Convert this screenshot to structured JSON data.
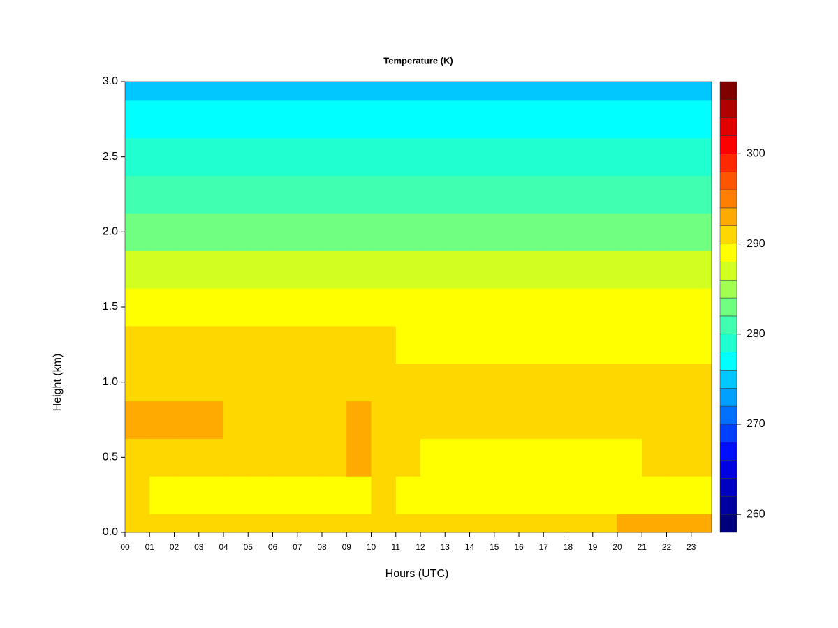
{
  "chart_data": {
    "type": "heatmap",
    "title": "Temperature (K)",
    "xlabel": "Hours (UTC)",
    "ylabel": "Height (km)",
    "x": [
      0,
      1,
      2,
      3,
      4,
      5,
      6,
      7,
      8,
      9,
      10,
      11,
      12,
      13,
      14,
      15,
      16,
      17,
      18,
      19,
      20,
      21,
      22,
      23
    ],
    "y": [
      0,
      0.25,
      0.5,
      0.75,
      1,
      1.25,
      1.5,
      1.75,
      2,
      2.25,
      2.5,
      2.75,
      3
    ],
    "values": [
      [
        291,
        291,
        291,
        291,
        291,
        291,
        291.5,
        291.5,
        291.5,
        291.5,
        291.5,
        291,
        291,
        291,
        291,
        291,
        291,
        291,
        291.5,
        291.5,
        292,
        292,
        292,
        292
      ],
      [
        290.5,
        289.5,
        289.5,
        289.5,
        289.5,
        289.5,
        289.5,
        289.5,
        289.5,
        289.5,
        290.5,
        289.5,
        289,
        289,
        288.8,
        289,
        289,
        289,
        289,
        289,
        289,
        289.5,
        289.5,
        289.5
      ],
      [
        291.5,
        291.5,
        291,
        291,
        290.5,
        290.5,
        291,
        291,
        291,
        292,
        291,
        290.5,
        289.5,
        289.5,
        289.5,
        289,
        289.5,
        289.5,
        289.5,
        289.5,
        289.5,
        290.5,
        290.5,
        290.5
      ],
      [
        292.5,
        292.5,
        292,
        292,
        291.5,
        291.5,
        291.5,
        291.5,
        291.5,
        292.5,
        291.5,
        291.5,
        291,
        291,
        290.5,
        290,
        291,
        291,
        291,
        291,
        290.5,
        291,
        291,
        291
      ],
      [
        291.5,
        291.5,
        291.5,
        291.5,
        291,
        291,
        291,
        291,
        291,
        291,
        291,
        290.5,
        290.5,
        290.5,
        290.5,
        290.5,
        291,
        291,
        291,
        291,
        290.5,
        290.5,
        290.5,
        290.5
      ],
      [
        290.5,
        290.5,
        290.5,
        290.5,
        290.5,
        290,
        290,
        290,
        290,
        290,
        290,
        289.5,
        289,
        289,
        289,
        289,
        289,
        289,
        289,
        289,
        289,
        289,
        289,
        289
      ],
      [
        288.5,
        288.5,
        288.5,
        288.5,
        288.5,
        288.5,
        288.5,
        288.5,
        288.5,
        288.5,
        288.5,
        288.5,
        288.5,
        288.5,
        288.5,
        288.5,
        288.5,
        288.5,
        288.5,
        288.5,
        288.5,
        288.5,
        288.5,
        288.5
      ],
      [
        286.5,
        286.5,
        286.5,
        286.5,
        286.5,
        286.5,
        286.5,
        286.5,
        286.5,
        286.5,
        286.5,
        286.5,
        286.5,
        286.5,
        286.5,
        286.5,
        286.5,
        286.5,
        286.5,
        286.5,
        286.5,
        286.5,
        286.5,
        286.5
      ],
      [
        283.5,
        283.5,
        283.5,
        283.5,
        283.5,
        283.5,
        283.5,
        283.5,
        283.5,
        283.5,
        283.5,
        283.5,
        283.5,
        283.5,
        283.5,
        283.5,
        283.5,
        283.5,
        283.5,
        283.5,
        283.5,
        283.5,
        283.5,
        283.5
      ],
      [
        281,
        281,
        281,
        281,
        281,
        281,
        281,
        281,
        281,
        281,
        281,
        281,
        281,
        281,
        281,
        281,
        281,
        281,
        281,
        281,
        281,
        281,
        281,
        281
      ],
      [
        279.5,
        279.5,
        279.5,
        279.5,
        279.5,
        279.5,
        279.5,
        279.5,
        279.5,
        279.5,
        279.5,
        279.5,
        279.5,
        279.5,
        279.5,
        279.5,
        279.5,
        279.5,
        279.5,
        279.5,
        279.5,
        279.5,
        279.5,
        279.5
      ],
      [
        277.5,
        277.5,
        277.5,
        277.5,
        277.5,
        277.5,
        277.5,
        277.5,
        277.5,
        277.5,
        277.5,
        277.5,
        277.5,
        277.5,
        277.5,
        277.5,
        277.5,
        277.5,
        277.5,
        277.5,
        277.5,
        277.5,
        277.5,
        277.5
      ],
      [
        275.5,
        275.5,
        275.5,
        275.5,
        275.5,
        275.5,
        275.5,
        275.5,
        275.5,
        275.5,
        275.5,
        275.5,
        275.5,
        275.5,
        275.5,
        275.5,
        275.5,
        275.5,
        275.5,
        275.5,
        275.5,
        275.5,
        275.5,
        275.5
      ]
    ],
    "xlim": [
      0,
      24
    ],
    "ylim": [
      0,
      3
    ],
    "xticks": [
      {
        "value": 0,
        "label": "00"
      },
      {
        "value": 1,
        "label": "01"
      },
      {
        "value": 2,
        "label": "02"
      },
      {
        "value": 3,
        "label": "03"
      },
      {
        "value": 4,
        "label": "04"
      },
      {
        "value": 5,
        "label": "05"
      },
      {
        "value": 6,
        "label": "06"
      },
      {
        "value": 7,
        "label": "07"
      },
      {
        "value": 8,
        "label": "08"
      },
      {
        "value": 9,
        "label": "09"
      },
      10,
      11,
      12,
      13,
      14,
      15,
      16,
      17,
      18,
      19,
      20,
      21,
      22,
      23
    ],
    "yticks": [
      {
        "value": 0,
        "label": "0.0"
      },
      0.5,
      {
        "value": 1,
        "label": "1.0"
      },
      1.5,
      {
        "value": 2,
        "label": "2.0"
      },
      2.5,
      {
        "value": 3,
        "label": "3.0"
      }
    ],
    "levels": [
      258,
      260,
      262,
      264,
      266,
      268,
      270,
      272,
      274,
      276,
      278,
      280,
      282,
      284,
      286,
      288,
      290,
      292,
      294,
      296,
      298,
      300,
      302,
      304,
      306,
      308
    ],
    "colors": [
      "#00007F",
      "#0000A0",
      "#0000C0",
      "#0000E0",
      "#0010FF",
      "#0040FF",
      "#0070FF",
      "#00A0FF",
      "#00C8FF",
      "#00FFFF",
      "#20FFD0",
      "#40FFB0",
      "#70FF80",
      "#A0FF50",
      "#D0FF20",
      "#FFFF00",
      "#FFD700",
      "#FFAA00",
      "#FF8000",
      "#FF5500",
      "#FF2A00",
      "#FF0000",
      "#E00000",
      "#B00000",
      "#800000"
    ],
    "colorbar_ticks": [
      260,
      270,
      280,
      290,
      300
    ]
  }
}
